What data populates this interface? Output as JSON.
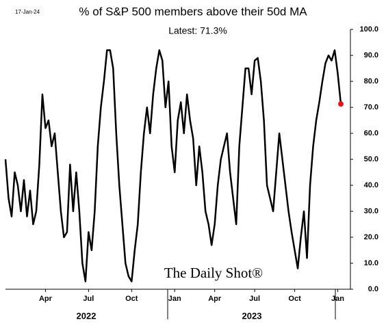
{
  "chart_data": {
    "type": "line",
    "date": "17-Jan-24",
    "title": "% of S&P 500 members above their 50d MA",
    "annotation": "Latest:  71.3%",
    "brand": "The Daily Shot®",
    "categories": [
      null,
      null,
      null,
      null,
      null,
      null,
      null,
      null,
      null,
      null,
      null,
      null,
      null,
      "Apr",
      null,
      null,
      null,
      null,
      null,
      null,
      null,
      null,
      null,
      null,
      null,
      null,
      null,
      "Jul",
      null,
      null,
      null,
      null,
      null,
      null,
      null,
      null,
      null,
      null,
      null,
      null,
      null,
      "Oct",
      null,
      null,
      null,
      null,
      null,
      null,
      null,
      null,
      null,
      null,
      null,
      null,
      null,
      "Jan",
      null,
      null,
      null,
      null,
      null,
      null,
      null,
      null,
      null,
      null,
      null,
      null,
      "Apr",
      null,
      null,
      null,
      null,
      null,
      null,
      null,
      null,
      null,
      null,
      null,
      null,
      "Jul",
      null,
      null,
      null,
      null,
      null,
      null,
      null,
      null,
      null,
      null,
      null,
      null,
      "Oct",
      null,
      null,
      null,
      null,
      null,
      null,
      null,
      null,
      null,
      null,
      null,
      null,
      null,
      "Jan",
      null
    ],
    "groups": [
      "2022",
      "2023"
    ],
    "series": [
      {
        "name": "% above 50d MA",
        "color": "#000000",
        "last_point_color": "#e8141b",
        "values": [
          50,
          35,
          28,
          45,
          40,
          30,
          42,
          28,
          38,
          25,
          30,
          48,
          75,
          62,
          65,
          55,
          60,
          45,
          30,
          20,
          22,
          48,
          30,
          45,
          30,
          10,
          3,
          22,
          15,
          30,
          55,
          70,
          80,
          92,
          92,
          85,
          60,
          40,
          25,
          10,
          5,
          3,
          15,
          25,
          45,
          60,
          70,
          60,
          75,
          85,
          92,
          88,
          70,
          80,
          55,
          45,
          65,
          72,
          60,
          75,
          65,
          58,
          40,
          55,
          45,
          30,
          25,
          17,
          25,
          40,
          50,
          55,
          60,
          45,
          35,
          25,
          55,
          70,
          85,
          85,
          75,
          88,
          89,
          80,
          65,
          40,
          35,
          30,
          45,
          60,
          50,
          40,
          30,
          22,
          15,
          8,
          20,
          30,
          12,
          40,
          55,
          65,
          72,
          80,
          87,
          90,
          88,
          92,
          83,
          71.3
        ]
      }
    ],
    "ylim": [
      0,
      100
    ],
    "yticks": [
      {
        "value": 0,
        "label": "0.0"
      },
      {
        "value": 10,
        "label": "10.0"
      },
      {
        "value": 20,
        "label": "20.0"
      },
      {
        "value": 30,
        "label": "30.0"
      },
      {
        "value": 40,
        "label": "40.0"
      },
      {
        "value": 50,
        "label": "50.0"
      },
      {
        "value": 60,
        "label": "60.0"
      },
      {
        "value": 70,
        "label": "70.0"
      },
      {
        "value": 80,
        "label": "80.0"
      },
      {
        "value": 90,
        "label": "90.0"
      },
      {
        "value": 100,
        "label": "100.0"
      }
    ],
    "grid": false
  }
}
